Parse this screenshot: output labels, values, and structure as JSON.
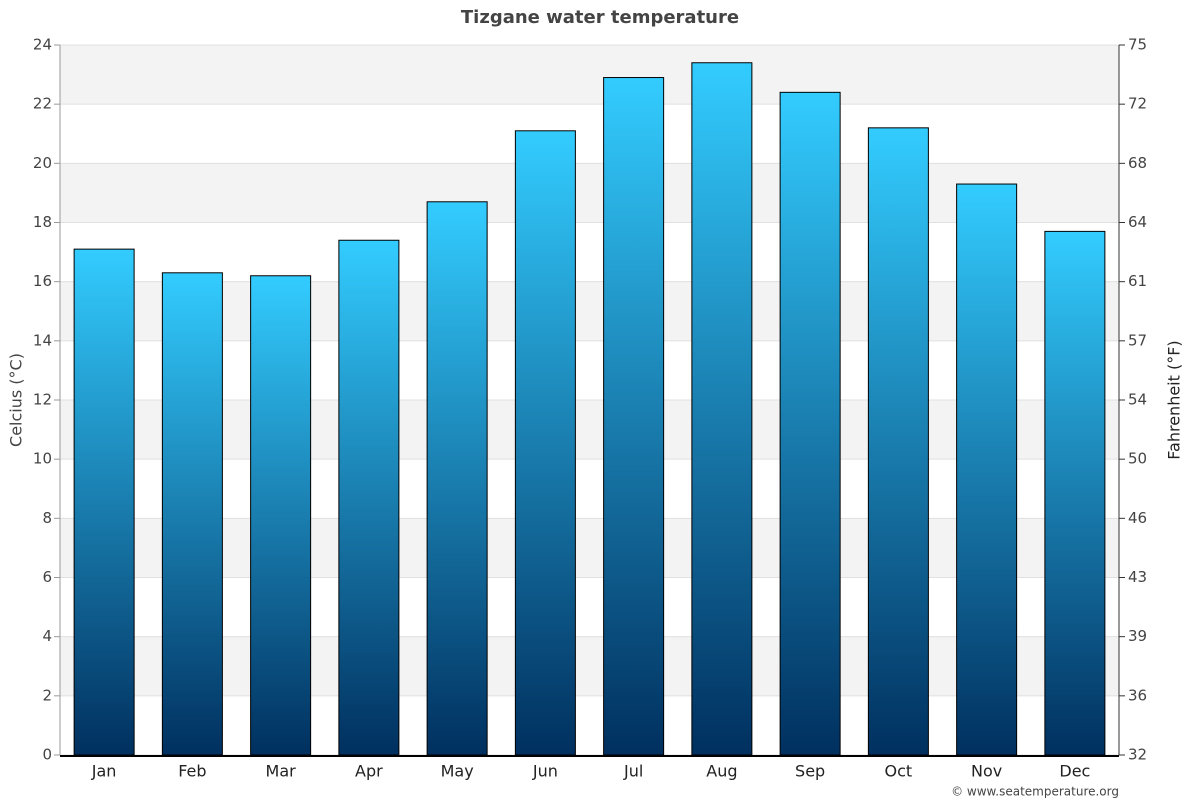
{
  "chart_data": {
    "type": "bar",
    "title": "Tizgane water temperature",
    "y_label": "Celcius (°C)",
    "y2_label": "Fahrenheit (°F)",
    "credit": "© www.seatemperature.org",
    "categories": [
      "Jan",
      "Feb",
      "Mar",
      "Apr",
      "May",
      "Jun",
      "Jul",
      "Aug",
      "Sep",
      "Oct",
      "Nov",
      "Dec"
    ],
    "values": [
      17.1,
      16.3,
      16.2,
      17.4,
      18.7,
      21.1,
      22.9,
      23.4,
      22.4,
      21.2,
      19.3,
      17.7
    ],
    "gradient": [
      "#33ccff",
      "#00305f"
    ],
    "ylim": [
      0,
      24
    ],
    "yticks": [
      0,
      2,
      4,
      6,
      8,
      10,
      12,
      14,
      16,
      18,
      20,
      22,
      24
    ],
    "y2lim": [
      32,
      75.2
    ],
    "y2ticks": [
      32,
      {
        "value": 35.6,
        "label": "36"
      },
      {
        "value": 39.2,
        "label": "39"
      },
      {
        "value": 42.8,
        "label": "43"
      },
      {
        "value": 46.4,
        "label": "46"
      },
      50,
      {
        "value": 53.6,
        "label": "54"
      },
      {
        "value": 57.2,
        "label": "57"
      },
      {
        "value": 60.8,
        "label": "61"
      },
      {
        "value": 64.4,
        "label": "64"
      },
      68,
      {
        "value": 71.6,
        "label": "72"
      },
      {
        "value": 75.2,
        "label": "75"
      }
    ],
    "grid": "bands"
  }
}
